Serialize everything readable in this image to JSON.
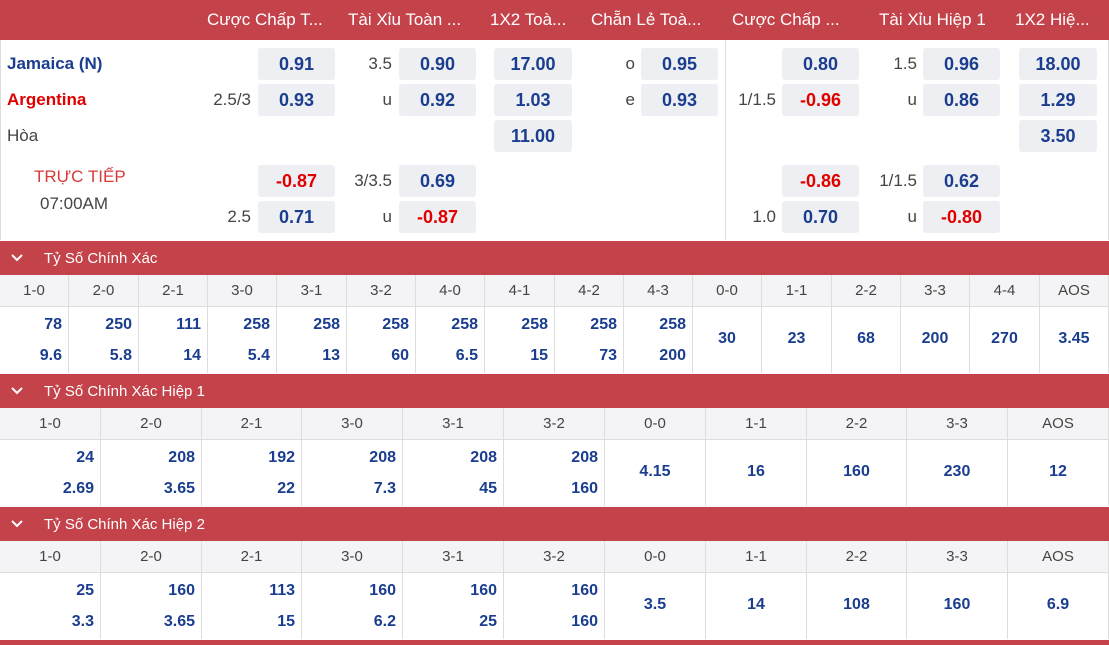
{
  "header": {
    "cols": [
      "Cược Chấp T...",
      "Tài Xỉu Toàn ...",
      "1X2 Toà...",
      "Chẵn Lẻ Toà...",
      "Cược Chấp ...",
      "Tài Xỉu Hiệp 1",
      "1X2 Hiệ..."
    ]
  },
  "match": {
    "home": "Jamaica (N)",
    "away": "Argentina",
    "draw": "Hòa",
    "status": "TRỰC TIẾP",
    "time": "07:00AM"
  },
  "odds": {
    "r1": {
      "h_home": "0.91",
      "ou_line": "3.5",
      "ou_over": "0.90",
      "x12_home": "17.00",
      "oe_o_label": "o",
      "oe_o": "0.95",
      "h1_home": "0.80",
      "ou1_line": "1.5",
      "ou1_over": "0.96",
      "x121_home": "18.00"
    },
    "r2": {
      "h_line": "2.5/3",
      "h_away": "0.93",
      "ou_u_label": "u",
      "ou_under": "0.92",
      "x12_away": "1.03",
      "oe_e_label": "e",
      "oe_e": "0.93",
      "h1_line": "1/1.5",
      "h1_away": "-0.96",
      "ou1_u_label": "u",
      "ou1_under": "0.86",
      "x121_away": "1.29"
    },
    "r3": {
      "x12_draw": "11.00",
      "x121_draw": "3.50"
    },
    "r4": {
      "h_home": "-0.87",
      "ou_line": "3/3.5",
      "ou_over": "0.69",
      "h1_home": "-0.86",
      "ou1_line": "1/1.5",
      "ou1_over": "0.62"
    },
    "r5": {
      "h_line": "2.5",
      "h_away": "0.71",
      "ou_u_label": "u",
      "ou_under": "-0.87",
      "h1_line": "1.0",
      "h1_away": "0.70",
      "ou1_u_label": "u",
      "ou1_under": "-0.80"
    }
  },
  "sections": [
    {
      "title": "Tỷ Số Chính Xác",
      "cells": [
        {
          "score": "1-0",
          "a": "78",
          "b": "9.6"
        },
        {
          "score": "2-0",
          "a": "250",
          "b": "5.8"
        },
        {
          "score": "2-1",
          "a": "111",
          "b": "14"
        },
        {
          "score": "3-0",
          "a": "258",
          "b": "5.4"
        },
        {
          "score": "3-1",
          "a": "258",
          "b": "13"
        },
        {
          "score": "3-2",
          "a": "258",
          "b": "60"
        },
        {
          "score": "4-0",
          "a": "258",
          "b": "6.5"
        },
        {
          "score": "4-1",
          "a": "258",
          "b": "15"
        },
        {
          "score": "4-2",
          "a": "258",
          "b": "73"
        },
        {
          "score": "4-3",
          "a": "258",
          "b": "200"
        },
        {
          "score": "0-0",
          "s": "30"
        },
        {
          "score": "1-1",
          "s": "23"
        },
        {
          "score": "2-2",
          "s": "68"
        },
        {
          "score": "3-3",
          "s": "200"
        },
        {
          "score": "4-4",
          "s": "270"
        },
        {
          "score": "AOS",
          "s": "3.45"
        }
      ]
    },
    {
      "title": "Tỷ Số Chính Xác Hiệp 1",
      "cells": [
        {
          "score": "1-0",
          "a": "24",
          "b": "2.69"
        },
        {
          "score": "2-0",
          "a": "208",
          "b": "3.65"
        },
        {
          "score": "2-1",
          "a": "192",
          "b": "22"
        },
        {
          "score": "3-0",
          "a": "208",
          "b": "7.3"
        },
        {
          "score": "3-1",
          "a": "208",
          "b": "45"
        },
        {
          "score": "3-2",
          "a": "208",
          "b": "160"
        },
        {
          "score": "0-0",
          "s": "4.15"
        },
        {
          "score": "1-1",
          "s": "16"
        },
        {
          "score": "2-2",
          "s": "160"
        },
        {
          "score": "3-3",
          "s": "230"
        },
        {
          "score": "AOS",
          "s": "12"
        }
      ]
    },
    {
      "title": "Tỷ Số Chính Xác Hiệp 2",
      "cells": [
        {
          "score": "1-0",
          "a": "25",
          "b": "3.3"
        },
        {
          "score": "2-0",
          "a": "160",
          "b": "3.65"
        },
        {
          "score": "2-1",
          "a": "113",
          "b": "15"
        },
        {
          "score": "3-0",
          "a": "160",
          "b": "6.2"
        },
        {
          "score": "3-1",
          "a": "160",
          "b": "25"
        },
        {
          "score": "3-2",
          "a": "160",
          "b": "160"
        },
        {
          "score": "0-0",
          "s": "3.5"
        },
        {
          "score": "1-1",
          "s": "14"
        },
        {
          "score": "2-2",
          "s": "108"
        },
        {
          "score": "3-3",
          "s": "160"
        },
        {
          "score": "AOS",
          "s": "6.9"
        }
      ]
    }
  ],
  "colors": {
    "header": "#c4424a",
    "odds_blue": "#1a3d8f",
    "odds_red": "#e00000"
  }
}
